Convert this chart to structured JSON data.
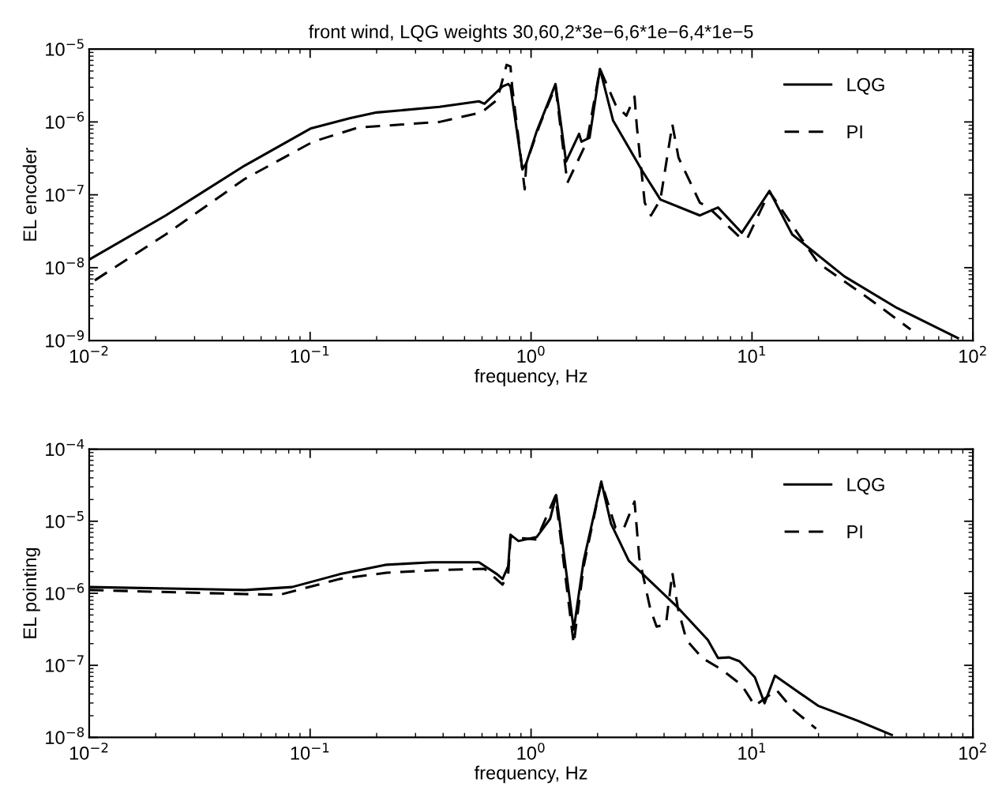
{
  "chart_data": [
    {
      "type": "line",
      "title": "front wind, LQG weights 30,60,2*3e−6,6*1e−6,4*1e−5",
      "xlabel": "frequency, Hz",
      "ylabel": "EL encoder",
      "log": "xy",
      "grid": false,
      "legend": "top right",
      "xlim": [
        0.01,
        100
      ],
      "ylim": [
        1e-09,
        1e-05
      ],
      "xticks": [
        {
          "value": 0.01,
          "label": "10$^{−2}$"
        },
        {
          "value": 0.1,
          "label": "10$^{−1}$"
        },
        {
          "value": 1,
          "label": "10$^{0}$"
        },
        {
          "value": 10,
          "label": "10$^{1}$"
        },
        {
          "value": 100,
          "label": "10$^{2}$"
        }
      ],
      "yticks": [
        {
          "value": 1e-09,
          "label": "10$^{−9}$"
        },
        {
          "value": 1e-08,
          "label": "10$^{−8}$"
        },
        {
          "value": 1e-07,
          "label": "10$^{−7}$"
        },
        {
          "value": 1e-06,
          "label": "10$^{−6}$"
        },
        {
          "value": 1e-05,
          "label": "10$^{−5}$"
        }
      ],
      "series": [
        {
          "name": "LQG",
          "color": "#000000",
          "line_style": "solid",
          "x": [
            0.01,
            0.0222,
            0.0506,
            0.101,
            0.152,
            0.2,
            0.385,
            0.581,
            0.615,
            0.743,
            0.788,
            0.807,
            0.914,
            0.952,
            1.06,
            1.29,
            1.44,
            1.65,
            1.69,
            1.84,
            2.05,
            2.35,
            3.19,
            3.85,
            5.81,
            7.02,
            8.99,
            12.0,
            15.2,
            26.2,
            45.4,
            85.5
          ],
          "values": [
            1.29e-08,
            5.21e-08,
            2.52e-07,
            8.18e-07,
            1.13e-06,
            1.35e-06,
            1.61e-06,
            1.92e-06,
            1.78e-06,
            3.08e-06,
            3.32e-06,
            3.08e-06,
            2.23e-07,
            2.72e-07,
            7.41e-07,
            3.32e-06,
            2.86e-07,
            6.87e-07,
            5.35e-07,
            6.07e-07,
            5.35e-06,
            1.05e-06,
            2.12e-07,
            8.61e-08,
            5.21e-08,
            6.7e-08,
            3.01e-08,
            1.13e-07,
            2.86e-08,
            7.59e-09,
            2.79e-09,
            1.08e-09
          ]
        },
        {
          "name": "PI",
          "color": "#000000",
          "line_style": "dashed",
          "x": [
            0.0106,
            0.0222,
            0.0506,
            0.103,
            0.165,
            0.385,
            0.596,
            0.702,
            0.775,
            0.807,
            0.821,
            0.936,
            0.952,
            1.09,
            1.29,
            1.46,
            1.79,
            2.05,
            2.41,
            2.7,
            2.94,
            3.01,
            3.27,
            3.49,
            3.85,
            4.36,
            4.65,
            5.81,
            6.31,
            8.77,
            9.52,
            12.0,
            19.9,
            34.6,
            52.2
          ],
          "values": [
            6.7e-09,
            2.86e-08,
            1.65e-07,
            5.35e-07,
            8.4e-07,
            1e-06,
            1.35e-06,
            2.01e-06,
            6.07e-06,
            5.77e-06,
            3.08e-06,
            1.19e-07,
            2.72e-07,
            8.83e-07,
            3.08e-06,
            1.46e-07,
            5.35e-07,
            5.35e-06,
            1.73e-06,
            1.22e-06,
            2.23e-06,
            8.83e-07,
            7.78e-08,
            5.21e-08,
            8.61e-08,
            9.27e-07,
            3.24e-07,
            7.78e-08,
            6.87e-08,
            2.65e-08,
            2.52e-08,
            1.1e-07,
            1.16e-08,
            3.58e-09,
            1.42e-09
          ]
        }
      ]
    },
    {
      "type": "line",
      "xlabel": "frequency, Hz",
      "ylabel": "EL pointing",
      "log": "xy",
      "grid": false,
      "legend": "top right",
      "xlim": [
        0.01,
        100
      ],
      "ylim": [
        1e-08,
        0.0001
      ],
      "xticks": [
        {
          "value": 0.01,
          "label": "10$^{−2}$"
        },
        {
          "value": 0.1,
          "label": "10$^{−1}$"
        },
        {
          "value": 1,
          "label": "10$^{0}$"
        },
        {
          "value": 10,
          "label": "10$^{1}$"
        },
        {
          "value": 100,
          "label": "10$^{2}$"
        }
      ],
      "yticks": [
        {
          "value": 1e-08,
          "label": "10$^{−8}$"
        },
        {
          "value": 1e-07,
          "label": "10$^{−7}$"
        },
        {
          "value": 1e-06,
          "label": "10$^{−6}$"
        },
        {
          "value": 1e-05,
          "label": "10$^{−5}$"
        },
        {
          "value": 0.0001,
          "label": "10$^{−4}$"
        }
      ],
      "series": [
        {
          "name": "LQG",
          "color": "#000000",
          "line_style": "solid",
          "x": [
            0.01,
            0.0506,
            0.0828,
            0.136,
            0.222,
            0.355,
            0.581,
            0.702,
            0.743,
            0.788,
            0.807,
            0.877,
            1.06,
            1.22,
            1.3,
            1.56,
            1.73,
            2.08,
            2.3,
            2.77,
            4.54,
            6.31,
            7.02,
            7.88,
            8.77,
            9.52,
            10.3,
            11.4,
            12.7,
            19.9,
            30.1,
            42.9
          ],
          "values": [
            1.22e-06,
            1.11e-06,
            1.22e-06,
            1.84e-06,
            2.49e-06,
            2.69e-06,
            2.69e-06,
            1.84e-06,
            1.58e-06,
            2.37e-06,
            6.5e-06,
            5.31e-06,
            6.03e-06,
            1.08e-05,
            2.31e-05,
            3.13e-07,
            2.83e-06,
            3.54e-05,
            9.27e-06,
            2.83e-06,
            6.67e-07,
            2.25e-07,
            1.26e-07,
            1.29e-07,
            1.14e-07,
            8.81e-08,
            6.84e-08,
            2.97e-08,
            7.19e-08,
            2.75e-08,
            1.7e-08,
            1.08e-08
          ]
        },
        {
          "name": "PI",
          "color": "#000000",
          "line_style": "dashed",
          "x": [
            0.01,
            0.0506,
            0.0726,
            0.136,
            0.222,
            0.355,
            0.615,
            0.743,
            0.788,
            0.807,
            1.06,
            1.29,
            1.56,
            1.73,
            2.08,
            2.41,
            2.62,
            2.94,
            3.09,
            3.46,
            3.7,
            4.08,
            4.36,
            4.62,
            5.05,
            5.96,
            7.26,
            8.99,
            10.3,
            12.9,
            15.2,
            19.5
          ],
          "values": [
            1.11e-06,
            9.75e-07,
            9.51e-07,
            1.58e-06,
            1.93e-06,
            2.08e-06,
            2.19e-06,
            1.32e-06,
            1.84e-06,
            6.03e-06,
            5.58e-06,
            2.25e-05,
            1.98e-07,
            2.37e-06,
            3.54e-05,
            8.17e-06,
            7.76e-06,
            1.88e-05,
            3.05e-06,
            6.18e-07,
            3.45e-07,
            3.72e-07,
            1.93e-06,
            6.18e-07,
            2.25e-07,
            1.26e-07,
            8.81e-08,
            5.31e-08,
            2.75e-08,
            4.56e-08,
            2.49e-08,
            1.32e-08
          ]
        }
      ]
    }
  ]
}
